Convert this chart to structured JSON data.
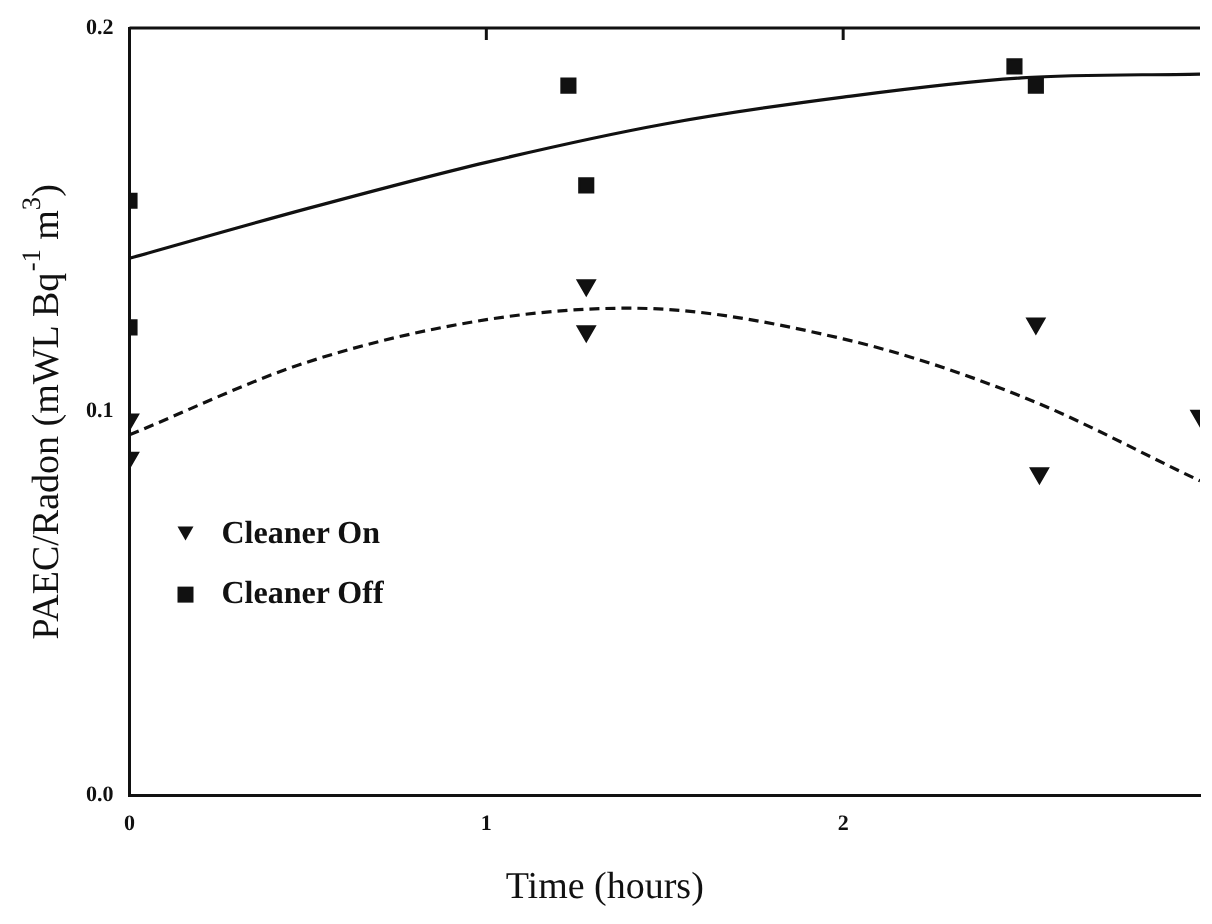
{
  "chart_data": {
    "type": "scatter",
    "xlabel": "Time (hours)",
    "ylabel": "PAEC/Radon (mWL Bq$^{-1}$ m$^{3}$)",
    "xlim": [
      0,
      3
    ],
    "xticks": [
      0,
      1,
      2
    ],
    "ylim": [
      0,
      0.2
    ],
    "yticks": [
      {
        "value": 0,
        "label": "0.0"
      },
      0.1,
      0.2
    ],
    "grid": false,
    "legend": "left",
    "series": [
      {
        "name": "Cleaner On",
        "marker": "triangle",
        "color": "#111111",
        "x": [
          0,
          0,
          1.28,
          1.28,
          2.54,
          2.55,
          3.0
        ],
        "values": [
          0.098,
          0.088,
          0.133,
          0.121,
          0.123,
          0.084,
          0.099
        ]
      },
      {
        "name": "Cleaner Off",
        "marker": "square",
        "color": "#111111",
        "x": [
          0,
          0,
          1.23,
          1.28,
          2.48,
          2.54
        ],
        "values": [
          0.155,
          0.122,
          0.185,
          0.159,
          0.19,
          0.185
        ]
      },
      {
        "type": "line",
        "marker": "none",
        "line_style": "solid",
        "color": "#111111",
        "x": [
          0,
          0.5,
          1,
          1.5,
          2,
          2.5,
          3
        ],
        "values": [
          0.14,
          0.153,
          0.165,
          0.175,
          0.182,
          0.187,
          0.188
        ]
      },
      {
        "type": "line",
        "marker": "none",
        "line_style": "dashed",
        "color": "#111111",
        "x": [
          0,
          0.5,
          1,
          1.4,
          2,
          2.5,
          3
        ],
        "values": [
          0.094,
          0.113,
          0.124,
          0.127,
          0.119,
          0.104,
          0.082
        ]
      }
    ]
  }
}
